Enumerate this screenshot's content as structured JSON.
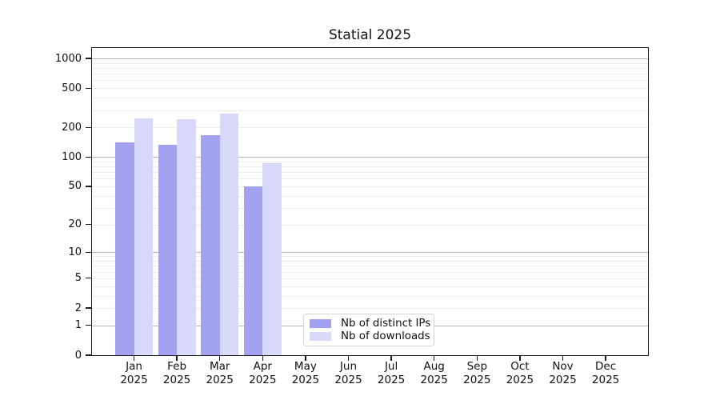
{
  "chart_data": {
    "type": "bar",
    "title": "Statial 2025",
    "x_months": [
      "Jan",
      "Feb",
      "Mar",
      "Apr",
      "May",
      "Jun",
      "Jul",
      "Aug",
      "Sep",
      "Oct",
      "Nov",
      "Dec"
    ],
    "x_year": "2025",
    "series": [
      {
        "name": "Nb of distinct IPs",
        "color": "#a2a2f0",
        "values": [
          140,
          133,
          166,
          50,
          0,
          0,
          0,
          0,
          0,
          0,
          0,
          0
        ]
      },
      {
        "name": "Nb of downloads",
        "color": "#d8d8f8",
        "values": [
          246,
          242,
          276,
          86,
          0,
          0,
          0,
          0,
          0,
          0,
          0,
          0
        ]
      }
    ],
    "yticks": [
      0,
      1,
      2,
      5,
      10,
      20,
      50,
      100,
      200,
      500,
      1000
    ],
    "major_gridlines": [
      1,
      10,
      100,
      1000
    ],
    "yscale": "symlog-log1p",
    "ylim": [
      0,
      1276
    ],
    "grid": "horizontal",
    "legend_position": "bottom-center-inside"
  },
  "colors": {
    "axis": "#1b1b1b",
    "major_grid": "#b5b5b5",
    "minor_grid": "#ececec",
    "legend_border": "#d5d5d5",
    "background": "#ffffff"
  }
}
